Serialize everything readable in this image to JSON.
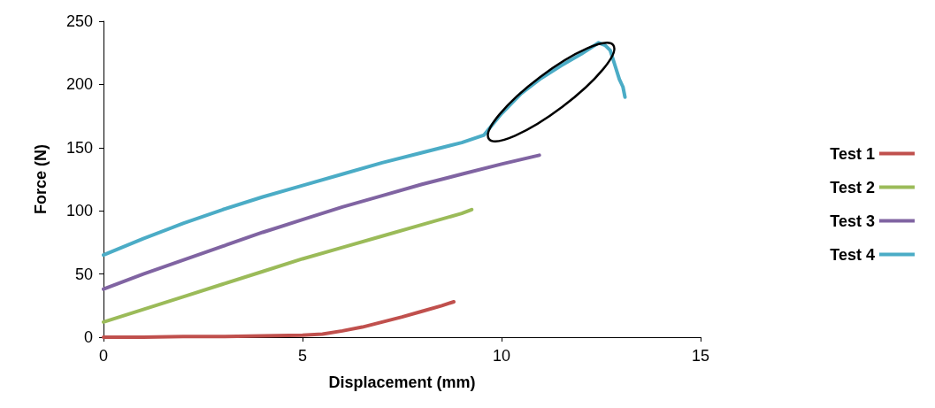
{
  "chart_data": {
    "type": "line",
    "xlabel": "Displacement (mm)",
    "ylabel": "Force (N)",
    "xlim": [
      0,
      15
    ],
    "xticks": [
      0,
      5,
      10,
      15
    ],
    "ylim": [
      0,
      250
    ],
    "yticks": [
      0,
      50,
      100,
      150,
      200,
      250
    ],
    "grid": false,
    "legend": "right",
    "marker": "none",
    "line_style": "solid",
    "series": [
      {
        "name": "Test 1",
        "color": "#c0504d",
        "x": [
          0,
          1,
          2,
          3,
          4,
          5,
          5.5,
          6,
          6.5,
          7,
          7.5,
          8,
          8.5,
          8.8
        ],
        "values": [
          0,
          0,
          0.5,
          0.5,
          1,
          1.5,
          2.5,
          5,
          8,
          12,
          16,
          20.5,
          25,
          28
        ]
      },
      {
        "name": "Test 2",
        "color": "#9bbb59",
        "x": [
          0,
          1,
          2,
          3,
          4,
          5,
          6,
          7,
          8,
          9,
          9.25
        ],
        "values": [
          12,
          22,
          32,
          42,
          52,
          62,
          71,
          80,
          89,
          98,
          101
        ]
      },
      {
        "name": "Test 3",
        "color": "#8064a2",
        "x": [
          0,
          1,
          2,
          3,
          4,
          5,
          6,
          7,
          8,
          9,
          10,
          10.95
        ],
        "values": [
          38,
          50,
          61,
          72,
          83,
          93,
          103,
          112,
          121,
          129,
          137,
          144
        ]
      },
      {
        "name": "Test 4",
        "color": "#4bacc6",
        "x": [
          0,
          1,
          2,
          3,
          4,
          5,
          6,
          7,
          8,
          9,
          9.56,
          10,
          10.5,
          11,
          11.5,
          12,
          12.44,
          12.6,
          12.73,
          12.85,
          12.96,
          13.05,
          13.1
        ],
        "values": [
          65,
          78,
          90,
          101,
          111,
          120,
          129,
          138,
          146,
          154,
          160,
          177,
          193,
          205,
          215,
          224,
          233,
          231,
          227,
          215,
          204,
          198,
          190
        ]
      }
    ]
  }
}
